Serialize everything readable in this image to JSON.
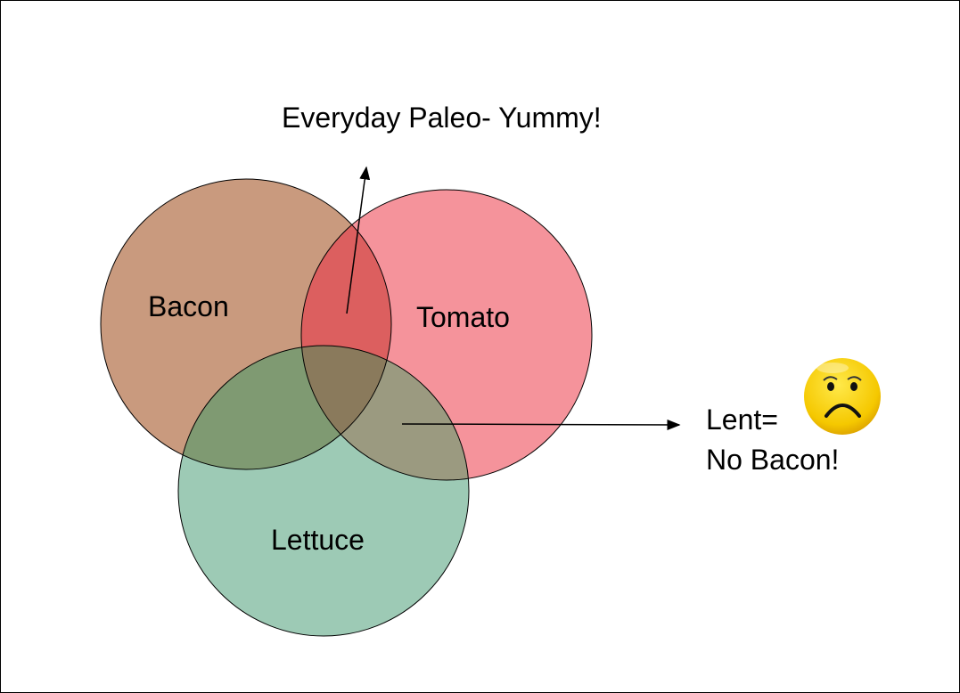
{
  "diagram": {
    "sets": [
      {
        "label": "Bacon",
        "color": "#c99a7e"
      },
      {
        "label": "Tomato",
        "color": "#f5939b"
      },
      {
        "label": "Lettuce",
        "color": "#9dcab5"
      }
    ],
    "overlap_colors": {
      "bacon_tomato": "#dc5f5f",
      "bacon_lettuce": "#7f9a72",
      "tomato_lettuce": "#9b9a80",
      "all": "#8a7a5c"
    },
    "annotations": {
      "top": "Everyday Paleo- Yummy!",
      "right_line1": "Lent=",
      "right_line2": "No Bacon!"
    },
    "icons": {
      "face": "sad-face-emoji-icon"
    }
  }
}
